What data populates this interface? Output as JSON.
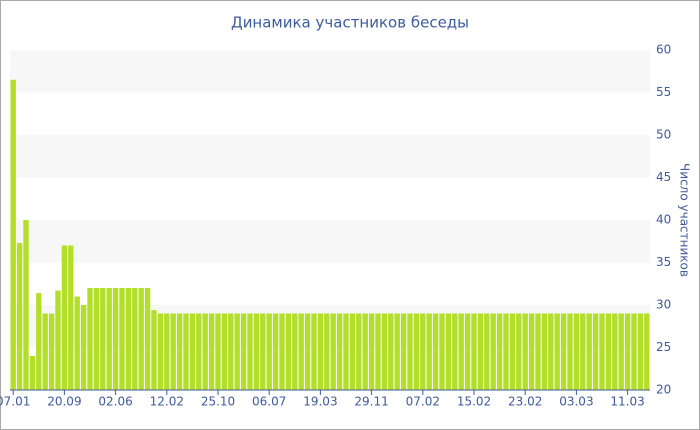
{
  "chart_data": {
    "type": "bar",
    "title": "Динамика участников беседы",
    "y_label": "Число участников",
    "categories": [
      "07.01",
      null,
      null,
      null,
      null,
      null,
      null,
      null,
      "20.09",
      null,
      null,
      null,
      null,
      null,
      null,
      null,
      "02.06",
      null,
      null,
      null,
      null,
      null,
      null,
      null,
      "12.02",
      null,
      null,
      null,
      null,
      null,
      null,
      null,
      "25.10",
      null,
      null,
      null,
      null,
      null,
      null,
      null,
      "06.07",
      null,
      null,
      null,
      null,
      null,
      null,
      null,
      "19.03",
      null,
      null,
      null,
      null,
      null,
      null,
      null,
      "29.11",
      null,
      null,
      null,
      null,
      null,
      null,
      null,
      "07.02",
      null,
      null,
      null,
      null,
      null,
      null,
      null,
      "15.02",
      null,
      null,
      null,
      null,
      null,
      null,
      null,
      "23.02",
      null,
      null,
      null,
      null,
      null,
      null,
      null,
      "03.03",
      null,
      null,
      null,
      null,
      null,
      null,
      null,
      "11.03",
      null,
      null,
      null
    ],
    "values": [
      56.5,
      37.3,
      40,
      24,
      31.4,
      29,
      29,
      31.7,
      37,
      37,
      31,
      30,
      32,
      32,
      32,
      32,
      32,
      32,
      32,
      32,
      32,
      32,
      29.4,
      29,
      29,
      29,
      29,
      29,
      29,
      29,
      29,
      29,
      29,
      29,
      29,
      29,
      29,
      29,
      29,
      29,
      29,
      29,
      29,
      29,
      29,
      29,
      29,
      29,
      29,
      29,
      29,
      29,
      29,
      29,
      29,
      29,
      29,
      29,
      29,
      29,
      29,
      29,
      29,
      29,
      29,
      29,
      29,
      29,
      29,
      29,
      29,
      29,
      29,
      29,
      29,
      29,
      29,
      29,
      29,
      29,
      29,
      29,
      29,
      29,
      29,
      29,
      29,
      29,
      29,
      29,
      29,
      29,
      29,
      29,
      29,
      29,
      29,
      29,
      29,
      29
    ],
    "color": "#b3df2a",
    "ylim": [
      20,
      60
    ],
    "yticks": [
      20,
      25,
      30,
      35,
      40,
      45,
      50,
      55,
      60
    ],
    "grid": "bands",
    "y_axis_side": "right"
  }
}
